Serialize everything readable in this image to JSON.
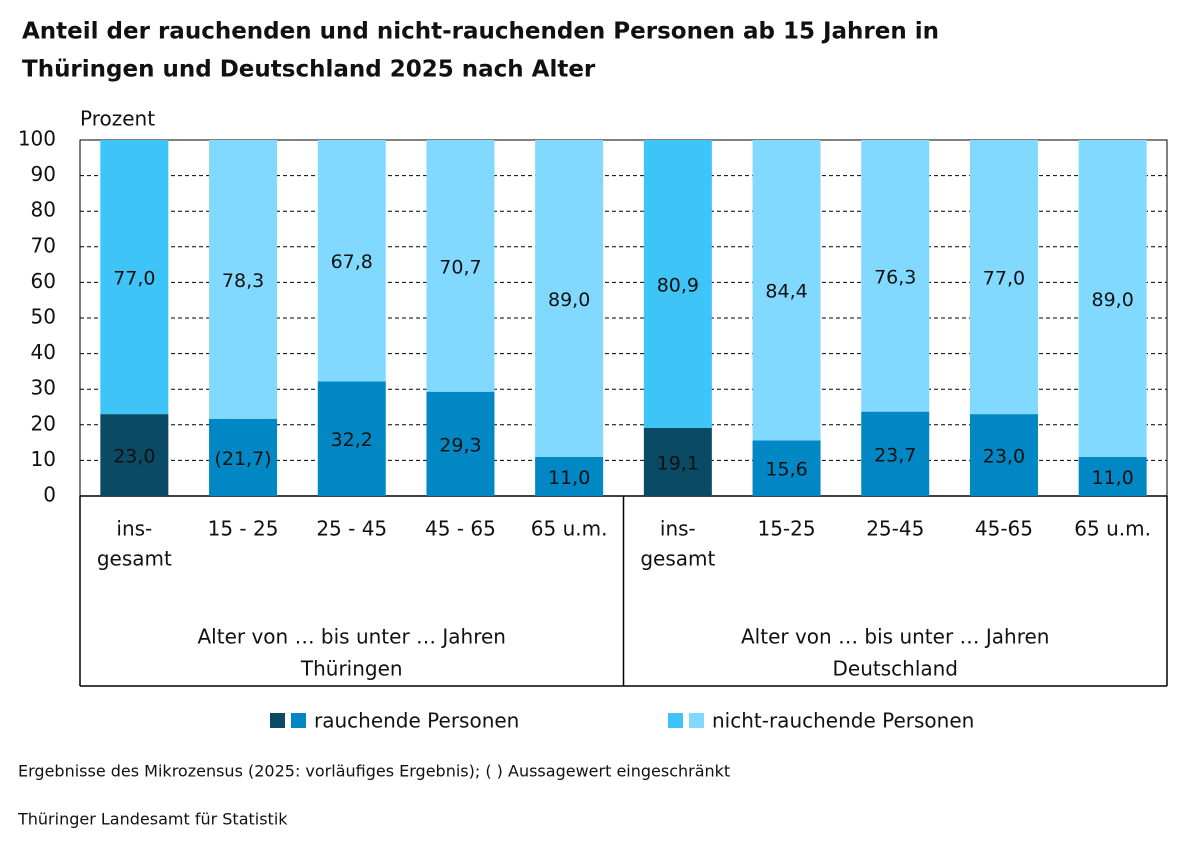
{
  "chart_data": {
    "type": "stacked_bar",
    "title": [
      "Anteil der rauchenden und nicht-rauchenden Personen ab 15 Jahren in",
      "Thüringen und Deutschland 2025 nach Alter"
    ],
    "y_label": "Prozent",
    "categories": [
      [
        "ins-",
        "gesamt"
      ],
      [
        "15 - 25"
      ],
      [
        "25 - 45"
      ],
      [
        "45 - 65"
      ],
      [
        "65 u.m."
      ],
      [
        "ins-",
        "gesamt"
      ],
      [
        "15-25"
      ],
      [
        "25-45"
      ],
      [
        "45-65"
      ],
      [
        "65 u.m."
      ]
    ],
    "groups": [
      {
        "axis_label": "Alter von … bis unter … Jahren",
        "name": "Thüringen"
      },
      {
        "axis_label": "Alter von … bis unter … Jahren",
        "name": "Deutschland"
      }
    ],
    "series": [
      {
        "name": "rauchende Personen",
        "colors": [
          "#0b4a65",
          "#0087c4",
          "#0087c4",
          "#0087c4",
          "#0087c4",
          "#0b4a65",
          "#0087c4",
          "#0087c4",
          "#0087c4",
          "#0087c4"
        ],
        "values": [
          23.0,
          21.7,
          32.2,
          29.3,
          11.0,
          19.1,
          15.6,
          23.7,
          23.0,
          11.0
        ],
        "value_labels": [
          "23,0",
          "(21,7)",
          "32,2",
          "29,3",
          "11,0",
          "19,1",
          "15,6",
          "23,7",
          "23,0",
          "11,0"
        ]
      },
      {
        "name": "nicht-rauchende Personen",
        "colors": [
          "#3ec4f7",
          "#82d9ff",
          "#82d9ff",
          "#82d9ff",
          "#82d9ff",
          "#3ec4f7",
          "#82d9ff",
          "#82d9ff",
          "#82d9ff",
          "#82d9ff"
        ],
        "values": [
          77.0,
          78.3,
          67.8,
          70.7,
          89.0,
          80.9,
          84.4,
          76.3,
          77.0,
          89.0
        ],
        "value_labels": [
          "77,0",
          "78,3",
          "67,8",
          "70,7",
          "89,0",
          "80,9",
          "84,4",
          "76,3",
          "77,0",
          "89,0"
        ]
      }
    ],
    "ylim": [
      0,
      100
    ],
    "yticks": [
      0,
      10,
      20,
      30,
      40,
      50,
      60,
      70,
      80,
      90,
      100
    ],
    "grid": true,
    "notes": [
      "Ergebnisse des Mikrozensus (2025: vorläufiges Ergebnis); ( ) Aussagewert eingeschränkt",
      "Thüringer Landesamt für Statistik"
    ]
  }
}
